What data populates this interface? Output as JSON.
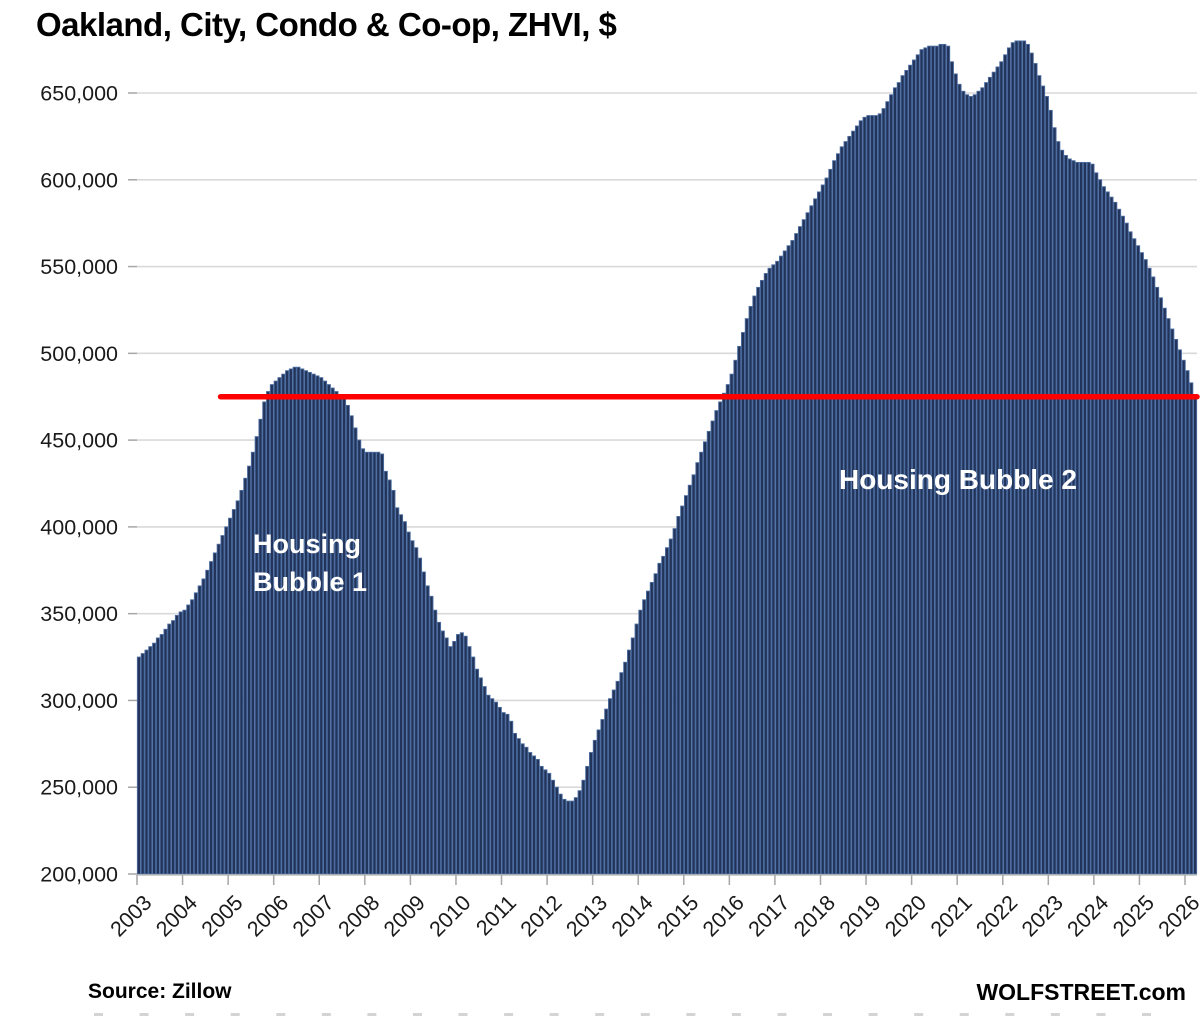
{
  "header": {
    "title": "Oakland, City, Condo & Co-op, ZHVI, $"
  },
  "footer": {
    "source_label": "Source: Zillow",
    "brand_label": "WOLFSTREET.com"
  },
  "annotations": {
    "bubble1_line1": "Housing",
    "bubble1_line2": "Bubble 1",
    "bubble2_label": "Housing Bubble 2"
  },
  "colors": {
    "bar_fill": "#22345a",
    "bar_stroke": "#4d6da0",
    "grid": "#d9d9d9",
    "axis_line": "#bfbfbf",
    "tick": "#a6a6a6",
    "red_line": "#fe0000",
    "axis_text": "#1a1a1a",
    "annotation_text": "#ffffff",
    "cutoff_marks": "#c9c9c9"
  },
  "chart_data": {
    "type": "bar",
    "title": "Oakland, City, Condo & Co-op, ZHVI, $",
    "ylabel": "ZHVI, $",
    "unit": "USD",
    "frequency": "monthly",
    "x_start": "2003-01",
    "x_end": "2026-03",
    "x_tick_labels": [
      "2003",
      "2004",
      "2005",
      "2006",
      "2007",
      "2008",
      "2009",
      "2010",
      "2011",
      "2012",
      "2013",
      "2014",
      "2015",
      "2016",
      "2017",
      "2018",
      "2019",
      "2020",
      "2021",
      "2022",
      "2023",
      "2024",
      "2025",
      "2026"
    ],
    "y_ticks": [
      200000,
      250000,
      300000,
      350000,
      400000,
      450000,
      500000,
      550000,
      600000,
      650000
    ],
    "ylim": [
      200000,
      682000
    ],
    "grid": true,
    "legend": false,
    "red_line": {
      "value": 475000,
      "start_month_index": 22
    },
    "series": [
      {
        "name": "Oakland condo & co-op ZHVI",
        "values": [
          325000,
          327000,
          329000,
          331000,
          333000,
          336000,
          338000,
          341000,
          344000,
          346000,
          349000,
          351000,
          352000,
          355000,
          358000,
          362000,
          366000,
          370000,
          375000,
          380000,
          385000,
          390000,
          395000,
          400000,
          405000,
          410000,
          415000,
          421000,
          428000,
          435000,
          443000,
          452000,
          462000,
          472000,
          478000,
          482000,
          484000,
          486000,
          488000,
          490000,
          491000,
          492000,
          492000,
          491000,
          490000,
          489000,
          488000,
          487000,
          486000,
          484000,
          482000,
          480000,
          478000,
          476000,
          474000,
          470000,
          464000,
          457000,
          450000,
          445000,
          443000,
          443000,
          443000,
          443000,
          442000,
          432000,
          427000,
          421000,
          411000,
          407000,
          403000,
          397000,
          392000,
          388000,
          382000,
          374000,
          366000,
          360000,
          352000,
          345000,
          340000,
          336000,
          331000,
          334000,
          338000,
          339000,
          337000,
          331000,
          325000,
          318000,
          313000,
          308000,
          303000,
          301000,
          299000,
          296000,
          293000,
          292000,
          288000,
          281000,
          278000,
          275000,
          273000,
          270000,
          268000,
          266000,
          262000,
          260000,
          258000,
          254000,
          250000,
          246000,
          243000,
          242000,
          242000,
          244000,
          248000,
          254000,
          262000,
          270000,
          277000,
          283000,
          289000,
          295000,
          301000,
          306000,
          311000,
          316000,
          322000,
          329000,
          336000,
          344000,
          352000,
          358000,
          363000,
          368000,
          373000,
          379000,
          383000,
          388000,
          393000,
          399000,
          406000,
          412000,
          418000,
          424000,
          430000,
          437000,
          443000,
          449000,
          455000,
          461000,
          467000,
          472000,
          477000,
          482000,
          488000,
          496000,
          504000,
          512000,
          520000,
          527000,
          533000,
          538000,
          542000,
          546000,
          549000,
          551000,
          553000,
          556000,
          559000,
          562000,
          565000,
          569000,
          573000,
          577000,
          581000,
          585000,
          589000,
          593000,
          597000,
          601000,
          606000,
          611000,
          615000,
          619000,
          622000,
          625000,
          628000,
          631000,
          634000,
          636000,
          637000,
          637000,
          637000,
          638000,
          641000,
          645000,
          649000,
          653000,
          656000,
          660000,
          663000,
          666000,
          669000,
          672000,
          675000,
          676000,
          677000,
          677000,
          677000,
          678000,
          678000,
          677000,
          668000,
          661000,
          655000,
          651000,
          649000,
          648000,
          649000,
          651000,
          653000,
          656000,
          659000,
          662000,
          665000,
          668000,
          672000,
          676000,
          679000,
          680000,
          680000,
          680000,
          678000,
          673000,
          667000,
          660000,
          654000,
          648000,
          640000,
          630000,
          622000,
          617000,
          614000,
          612000,
          611000,
          610000,
          610000,
          610000,
          610000,
          609000,
          604000,
          600000,
          596000,
          593000,
          590000,
          587000,
          583000,
          579000,
          575000,
          570000,
          566000,
          562000,
          558000,
          554000,
          549000,
          544000,
          538000,
          532000,
          526000,
          520000,
          514000,
          508000,
          502000,
          496000,
          490000,
          483000,
          476000
        ]
      }
    ]
  }
}
